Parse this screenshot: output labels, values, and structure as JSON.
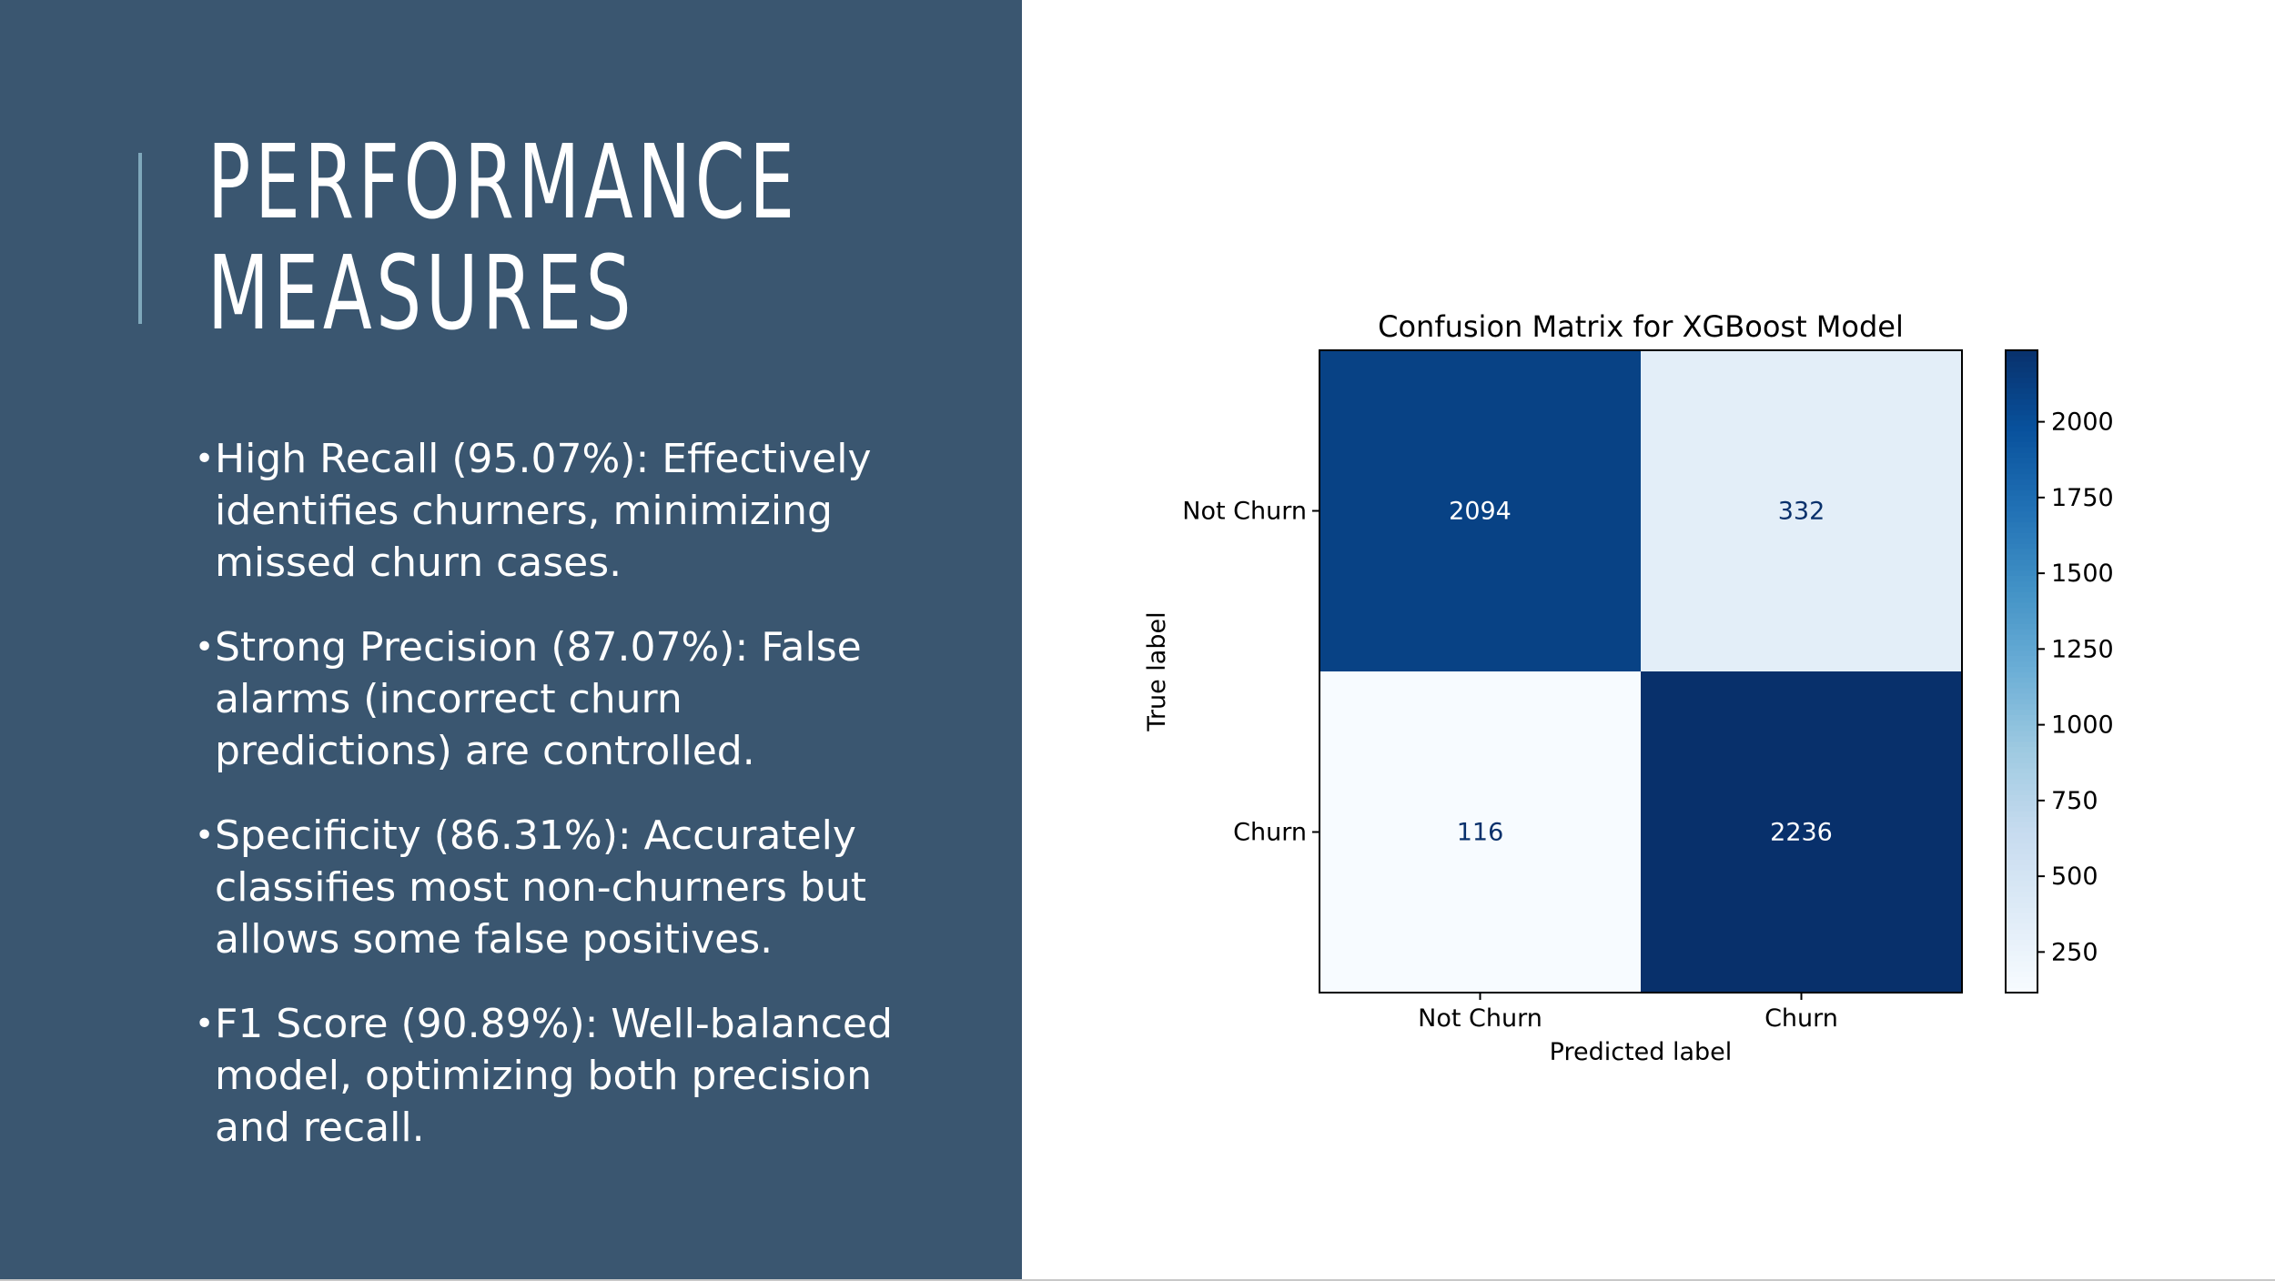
{
  "slide": {
    "title_lines": [
      "PERFORMANCE",
      "MEASURES"
    ],
    "bullets": [
      "High Recall (95.07%): Effectively identifies churners, minimizing missed churn cases.",
      "Strong Precision (87.07%): False alarms (incorrect churn predictions) are controlled.",
      "Specificity (86.31%): Accurately classifies most non-churners but allows some false positives.",
      "F1 Score (90.89%): Well-balanced model, optimizing both precision and recall."
    ],
    "bullet_symbol": "•"
  },
  "colors": {
    "panel": "#3a5670",
    "accent": "#7fa8bb",
    "cmap_low": "#f7fbff",
    "cmap_high": "#08306b",
    "dark_text": "#08306b",
    "light_text": "#ffffff"
  },
  "chart_data": {
    "type": "heatmap",
    "title": "Confusion Matrix for XGBoost Model",
    "xlabel": "Predicted label",
    "ylabel": "True label",
    "x_categories": [
      "Not Churn",
      "Churn"
    ],
    "y_categories": [
      "Not Churn",
      "Churn"
    ],
    "values": [
      [
        2094,
        332
      ],
      [
        116,
        2236
      ]
    ],
    "colorbar": {
      "min": 116,
      "max": 2236,
      "ticks": [
        250,
        500,
        750,
        1000,
        1250,
        1500,
        1750,
        2000
      ]
    }
  }
}
